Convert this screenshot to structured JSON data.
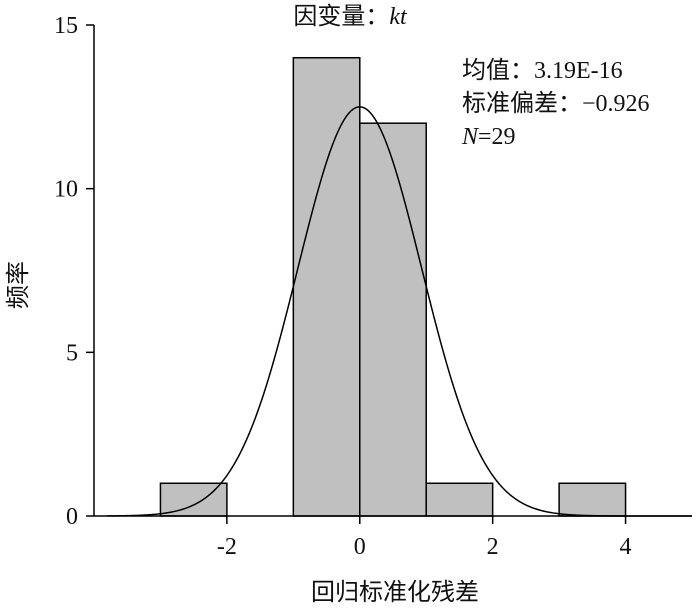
{
  "chart_data": {
    "type": "bar",
    "title_prefix": "因变量：",
    "title_var": "kt",
    "xlabel": "回归标准化残差",
    "ylabel": "频率",
    "xlim": [
      -4,
      5
    ],
    "ylim": [
      0,
      15
    ],
    "x_ticks": [
      -2,
      0,
      2,
      4
    ],
    "y_ticks": [
      0,
      5,
      10,
      15
    ],
    "bins": [
      {
        "from": -3,
        "to": -2,
        "count": 1
      },
      {
        "from": -1,
        "to": 0,
        "count": 14
      },
      {
        "from": 0,
        "to": 1,
        "count": 12
      },
      {
        "from": 1,
        "to": 2,
        "count": 1
      },
      {
        "from": 3,
        "to": 4,
        "count": 1
      }
    ],
    "normal_curve": {
      "mean": 0,
      "peak": 12.5
    },
    "stats": {
      "mean_label": "均值：",
      "mean_value": "3.19E-16",
      "sd_label": "标准偏差：",
      "sd_value": "−0.926",
      "n_label": "N",
      "n_value": "=29"
    },
    "bar_color": "#c0c0c0",
    "line_color": "#000000"
  }
}
